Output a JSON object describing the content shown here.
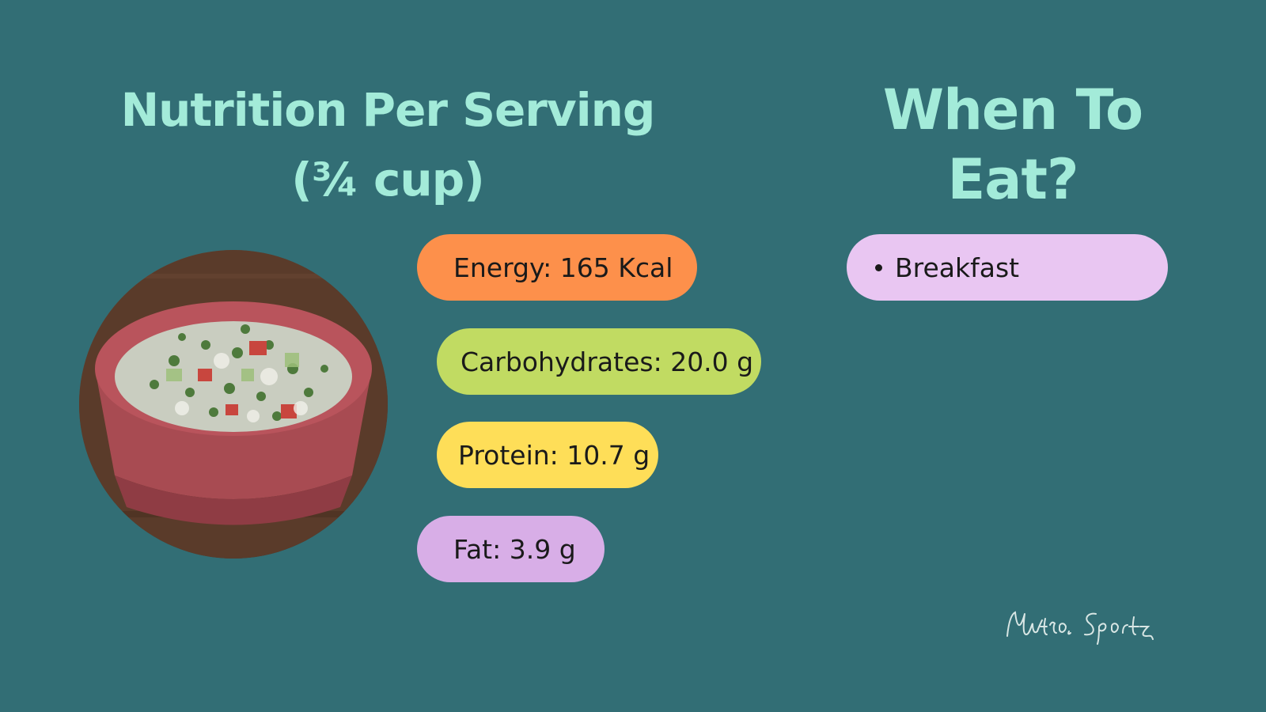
{
  "nutrition": {
    "heading_line1": "Nutrition Per Serving",
    "heading_line2": "(¾ cup)",
    "items": [
      {
        "label": "Energy: 165 Kcal",
        "color": "#fd904b"
      },
      {
        "label": "Carbohydrates: 20.0 g",
        "color": "#c1db62"
      },
      {
        "label": "Protein: 10.7 g",
        "color": "#fede58"
      },
      {
        "label": "Fat: 3.9 g",
        "color": "#d8aee7"
      }
    ]
  },
  "when_to_eat": {
    "heading": "When To Eat?",
    "items": [
      {
        "label": "Breakfast",
        "color": "#e9c6f2"
      }
    ]
  },
  "photo": {
    "icon": "salad-bowl-photo"
  },
  "brand": {
    "logo_text": "NutroSportz"
  },
  "colors": {
    "background": "#326e75",
    "heading": "#a3ebd9"
  }
}
